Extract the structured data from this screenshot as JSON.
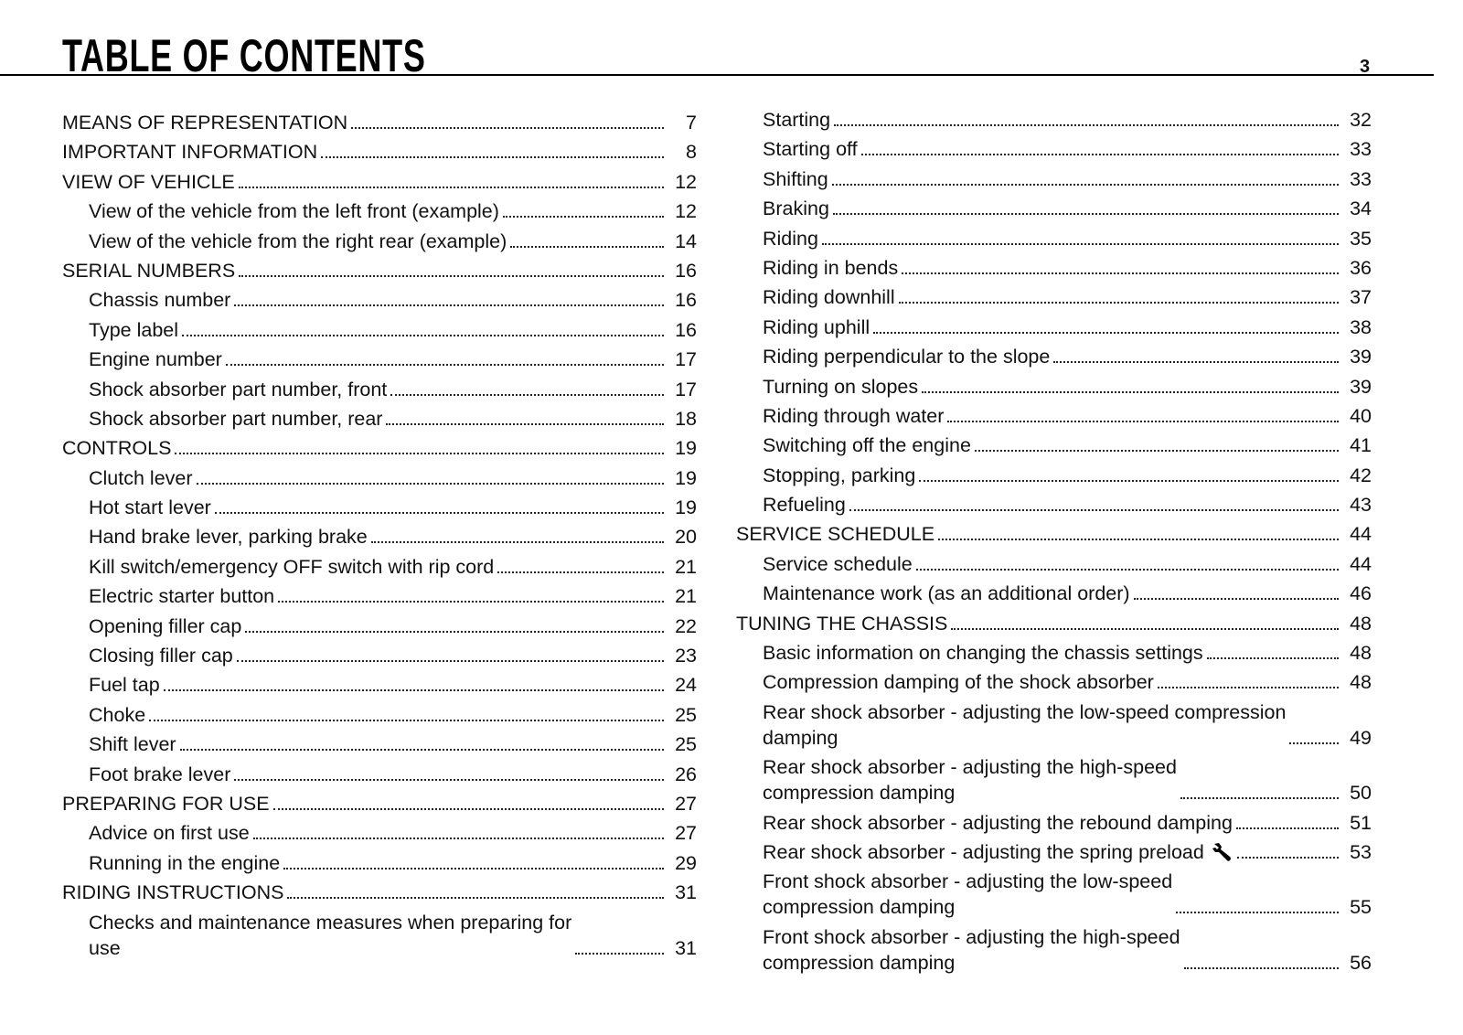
{
  "header": {
    "title": "TABLE OF CONTENTS",
    "page_number": "3"
  },
  "left_column": [
    {
      "title": "MEANS OF REPRESENTATION",
      "page": "7",
      "level": 1
    },
    {
      "title": "IMPORTANT INFORMATION",
      "page": "8",
      "level": 1
    },
    {
      "title": "VIEW OF VEHICLE",
      "page": "12",
      "level": 1
    },
    {
      "title": "View of the vehicle from the left front (example)",
      "page": "12",
      "level": 2
    },
    {
      "title": "View of the vehicle from the right rear (example)",
      "page": "14",
      "level": 2
    },
    {
      "title": "SERIAL NUMBERS",
      "page": "16",
      "level": 1
    },
    {
      "title": "Chassis number",
      "page": "16",
      "level": 2
    },
    {
      "title": "Type label",
      "page": "16",
      "level": 2
    },
    {
      "title": "Engine number",
      "page": "17",
      "level": 2
    },
    {
      "title": "Shock absorber part number, front",
      "page": "17",
      "level": 2
    },
    {
      "title": "Shock absorber part number, rear",
      "page": "18",
      "level": 2
    },
    {
      "title": "CONTROLS",
      "page": "19",
      "level": 1
    },
    {
      "title": "Clutch lever",
      "page": "19",
      "level": 2
    },
    {
      "title": "Hot start lever",
      "page": "19",
      "level": 2
    },
    {
      "title": "Hand brake lever, parking brake",
      "page": "20",
      "level": 2
    },
    {
      "title": "Kill switch/emergency OFF switch with rip cord",
      "page": "21",
      "level": 2
    },
    {
      "title": "Electric starter button",
      "page": "21",
      "level": 2
    },
    {
      "title": "Opening filler cap",
      "page": "22",
      "level": 2
    },
    {
      "title": "Closing filler cap",
      "page": "23",
      "level": 2
    },
    {
      "title": "Fuel tap",
      "page": "24",
      "level": 2
    },
    {
      "title": "Choke",
      "page": "25",
      "level": 2
    },
    {
      "title": "Shift lever",
      "page": "25",
      "level": 2
    },
    {
      "title": "Foot brake lever",
      "page": "26",
      "level": 2
    },
    {
      "title": "PREPARING FOR USE",
      "page": "27",
      "level": 1
    },
    {
      "title": "Advice on first use",
      "page": "27",
      "level": 2
    },
    {
      "title": "Running in the engine",
      "page": "29",
      "level": 2
    },
    {
      "title": "RIDING INSTRUCTIONS",
      "page": "31",
      "level": 1
    },
    {
      "title": "Checks and maintenance measures when preparing for\nuse",
      "page": "31",
      "level": 2
    }
  ],
  "right_column": [
    {
      "title": "Starting",
      "page": "32",
      "level": 2
    },
    {
      "title": "Starting off",
      "page": "33",
      "level": 2
    },
    {
      "title": "Shifting",
      "page": "33",
      "level": 2
    },
    {
      "title": "Braking",
      "page": "34",
      "level": 2
    },
    {
      "title": "Riding",
      "page": "35",
      "level": 2
    },
    {
      "title": "Riding in bends",
      "page": "36",
      "level": 2
    },
    {
      "title": "Riding downhill",
      "page": "37",
      "level": 2
    },
    {
      "title": "Riding uphill",
      "page": "38",
      "level": 2
    },
    {
      "title": "Riding perpendicular to the slope",
      "page": "39",
      "level": 2
    },
    {
      "title": "Turning on slopes",
      "page": "39",
      "level": 2
    },
    {
      "title": "Riding through water",
      "page": "40",
      "level": 2
    },
    {
      "title": "Switching off the engine",
      "page": "41",
      "level": 2
    },
    {
      "title": "Stopping, parking",
      "page": "42",
      "level": 2
    },
    {
      "title": "Refueling",
      "page": "43",
      "level": 2
    },
    {
      "title": "SERVICE SCHEDULE",
      "page": "44",
      "level": 1
    },
    {
      "title": "Service schedule",
      "page": "44",
      "level": 2
    },
    {
      "title": "Maintenance work (as an additional order)",
      "page": "46",
      "level": 2
    },
    {
      "title": "TUNING THE CHASSIS",
      "page": "48",
      "level": 1
    },
    {
      "title": "Basic information on changing the chassis settings",
      "page": "48",
      "level": 2
    },
    {
      "title": "Compression damping of the shock absorber",
      "page": "48",
      "level": 2
    },
    {
      "title": "Rear shock absorber - adjusting the low-speed compression\ndamping",
      "page": "49",
      "level": 2
    },
    {
      "title": "Rear shock absorber - adjusting the high-speed\ncompression damping",
      "page": "50",
      "level": 2
    },
    {
      "title": "Rear shock absorber - adjusting the rebound damping",
      "page": "51",
      "level": 2
    },
    {
      "title": "Rear shock absorber - adjusting the spring preload",
      "page": "53",
      "level": 2,
      "icon": "wrench-icon"
    },
    {
      "title": "Front shock absorber - adjusting the low-speed\ncompression damping",
      "page": "55",
      "level": 2
    },
    {
      "title": "Front shock absorber - adjusting the high-speed\ncompression damping",
      "page": "56",
      "level": 2
    }
  ]
}
